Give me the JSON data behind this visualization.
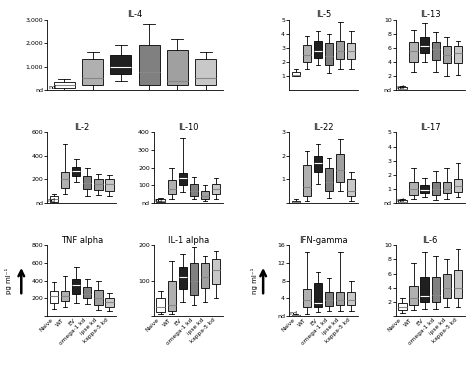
{
  "groups": [
    "Naive",
    "WT",
    "EV",
    "omega-1 kd",
    "ipse kd",
    "kappa-5 kd"
  ],
  "colors": [
    "white",
    "#b0b0b0",
    "#202020",
    "#808080",
    "#a0a0a0",
    "#c8c8c8"
  ],
  "edge_color": "black",
  "panels": [
    {
      "title": "IL-4",
      "ylabel": "",
      "ylim": [
        0,
        3000
      ],
      "yticks": [
        0,
        1000,
        2000,
        3000
      ],
      "yticklabels": [
        "nd",
        "1,000",
        "2,000",
        "3,000"
      ],
      "nd_at": 0,
      "arrow": false,
      "boxes": [
        {
          "med": 200,
          "q1": 100,
          "q3": 350,
          "whislo": 0,
          "whishi": 450
        },
        {
          "med": 500,
          "q1": 200,
          "q3": 1300,
          "whislo": 0,
          "whishi": 1600
        },
        {
          "med": 1000,
          "q1": 700,
          "q3": 1500,
          "whislo": 400,
          "whishi": 1900
        },
        {
          "med": 750,
          "q1": 200,
          "q3": 1900,
          "whislo": 0,
          "whishi": 2800
        },
        {
          "med": 400,
          "q1": 200,
          "q3": 1700,
          "whislo": 0,
          "whishi": 2150
        },
        {
          "med": 500,
          "q1": 200,
          "q3": 1300,
          "whislo": 0,
          "whishi": 1600
        }
      ]
    },
    {
      "title": "IL-5",
      "ylabel": "",
      "ylim": [
        0,
        5
      ],
      "yticks": [
        1,
        2,
        3,
        4,
        5
      ],
      "yticklabels": [
        "1",
        "2",
        "3",
        "4",
        "5"
      ],
      "nd_at": null,
      "arrow": false,
      "boxes": [
        {
          "med": 1.1,
          "q1": 1.0,
          "q3": 1.3,
          "whislo": 1.0,
          "whishi": 1.5
        },
        {
          "med": 2.5,
          "q1": 2.0,
          "q3": 3.2,
          "whislo": 1.5,
          "whishi": 3.8
        },
        {
          "med": 2.8,
          "q1": 2.3,
          "q3": 3.5,
          "whislo": 1.8,
          "whishi": 4.2
        },
        {
          "med": 2.4,
          "q1": 1.8,
          "q3": 3.3,
          "whislo": 1.2,
          "whishi": 4.0
        },
        {
          "med": 2.8,
          "q1": 2.2,
          "q3": 3.5,
          "whislo": 1.5,
          "whishi": 4.8
        },
        {
          "med": 2.8,
          "q1": 2.2,
          "q3": 3.3,
          "whislo": 1.5,
          "whishi": 4.2
        }
      ]
    },
    {
      "title": "IL-13",
      "ylabel": "",
      "ylim": [
        0,
        10
      ],
      "yticks": [
        0,
        2,
        4,
        6,
        8,
        10
      ],
      "yticklabels": [
        "nd",
        "2",
        "4",
        "6",
        "8",
        "10"
      ],
      "nd_at": 0,
      "arrow": false,
      "boxes": [
        {
          "med": 0.2,
          "q1": 0.1,
          "q3": 0.4,
          "whislo": 0.0,
          "whishi": 0.6
        },
        {
          "med": 5.5,
          "q1": 4.0,
          "q3": 6.8,
          "whislo": 2.5,
          "whishi": 8.5
        },
        {
          "med": 6.2,
          "q1": 5.2,
          "q3": 7.5,
          "whislo": 4.0,
          "whishi": 9.5
        },
        {
          "med": 5.8,
          "q1": 4.2,
          "q3": 6.8,
          "whislo": 2.5,
          "whishi": 8.2
        },
        {
          "med": 5.0,
          "q1": 3.8,
          "q3": 6.2,
          "whislo": 2.0,
          "whishi": 7.5
        },
        {
          "med": 5.2,
          "q1": 3.8,
          "q3": 6.2,
          "whislo": 2.2,
          "whishi": 7.0
        }
      ]
    },
    {
      "title": "IL-2",
      "ylabel": "",
      "ylim": [
        0,
        600
      ],
      "yticks": [
        0,
        200,
        400,
        600
      ],
      "yticklabels": [
        "nd",
        "200",
        "400",
        "600"
      ],
      "nd_at": 0,
      "arrow": false,
      "boxes": [
        {
          "med": 30,
          "q1": 10,
          "q3": 60,
          "whislo": 0,
          "whishi": 80
        },
        {
          "med": 200,
          "q1": 130,
          "q3": 260,
          "whislo": 80,
          "whishi": 500
        },
        {
          "med": 270,
          "q1": 230,
          "q3": 310,
          "whislo": 180,
          "whishi": 370
        },
        {
          "med": 170,
          "q1": 120,
          "q3": 230,
          "whislo": 60,
          "whishi": 300
        },
        {
          "med": 160,
          "q1": 110,
          "q3": 200,
          "whislo": 70,
          "whishi": 250
        },
        {
          "med": 160,
          "q1": 100,
          "q3": 200,
          "whislo": 60,
          "whishi": 240
        }
      ]
    },
    {
      "title": "IL-10",
      "ylabel": "",
      "ylim": [
        0,
        400
      ],
      "yticks": [
        0,
        100,
        200,
        300,
        400
      ],
      "yticklabels": [
        "nd",
        "100",
        "200",
        "300",
        "400"
      ],
      "nd_at": 0,
      "arrow": false,
      "boxes": [
        {
          "med": 10,
          "q1": 5,
          "q3": 20,
          "whislo": 0,
          "whishi": 30
        },
        {
          "med": 80,
          "q1": 50,
          "q3": 130,
          "whislo": 20,
          "whishi": 200
        },
        {
          "med": 140,
          "q1": 100,
          "q3": 170,
          "whislo": 60,
          "whishi": 370
        },
        {
          "med": 70,
          "q1": 40,
          "q3": 110,
          "whislo": 20,
          "whishi": 150
        },
        {
          "med": 40,
          "q1": 25,
          "q3": 70,
          "whislo": 10,
          "whishi": 100
        },
        {
          "med": 80,
          "q1": 50,
          "q3": 110,
          "whislo": 20,
          "whishi": 140
        }
      ]
    },
    {
      "title": "IL-22",
      "ylabel": "",
      "ylim": [
        0,
        3
      ],
      "yticks": [
        0,
        1,
        2,
        3
      ],
      "yticklabels": [
        "",
        "1",
        "2",
        "3"
      ],
      "nd_at": null,
      "arrow": false,
      "boxes": [
        {
          "med": 0.05,
          "q1": 0.02,
          "q3": 0.1,
          "whislo": 0.0,
          "whishi": 0.15
        },
        {
          "med": 0.7,
          "q1": 0.3,
          "q3": 1.6,
          "whislo": 0.1,
          "whishi": 2.2
        },
        {
          "med": 1.7,
          "q1": 1.3,
          "q3": 2.0,
          "whislo": 0.8,
          "whishi": 2.5
        },
        {
          "med": 0.9,
          "q1": 0.5,
          "q3": 1.5,
          "whislo": 0.2,
          "whishi": 1.9
        },
        {
          "med": 1.4,
          "q1": 0.9,
          "q3": 2.1,
          "whislo": 0.5,
          "whishi": 2.7
        },
        {
          "med": 0.5,
          "q1": 0.3,
          "q3": 1.0,
          "whislo": 0.1,
          "whishi": 1.3
        }
      ]
    },
    {
      "title": "IL-17",
      "ylabel": "",
      "ylim": [
        0,
        5
      ],
      "yticks": [
        0,
        1,
        2,
        3,
        4,
        5
      ],
      "yticklabels": [
        "nd",
        "1",
        "2",
        "3",
        "4",
        "5"
      ],
      "nd_at": 0,
      "arrow": false,
      "boxes": [
        {
          "med": 0.1,
          "q1": 0.05,
          "q3": 0.2,
          "whislo": 0.0,
          "whishi": 0.3
        },
        {
          "med": 1.0,
          "q1": 0.6,
          "q3": 1.5,
          "whislo": 0.3,
          "whishi": 2.5
        },
        {
          "med": 0.9,
          "q1": 0.7,
          "q3": 1.3,
          "whislo": 0.4,
          "whishi": 1.8
        },
        {
          "med": 1.0,
          "q1": 0.6,
          "q3": 1.5,
          "whislo": 0.2,
          "whishi": 2.3
        },
        {
          "med": 1.0,
          "q1": 0.7,
          "q3": 1.5,
          "whislo": 0.3,
          "whishi": 2.5
        },
        {
          "med": 1.2,
          "q1": 0.8,
          "q3": 1.7,
          "whislo": 0.4,
          "whishi": 2.8
        }
      ]
    },
    {
      "title": "TNF alpha",
      "ylabel": "pg ml⁻¹",
      "ylim": [
        0,
        800
      ],
      "yticks": [
        0,
        200,
        400,
        600,
        800
      ],
      "yticklabels": [
        "",
        "200",
        "400",
        "600",
        "800"
      ],
      "nd_at": null,
      "arrow": true,
      "boxes": [
        {
          "med": 220,
          "q1": 150,
          "q3": 280,
          "whislo": 80,
          "whishi": 380
        },
        {
          "med": 220,
          "q1": 170,
          "q3": 280,
          "whislo": 100,
          "whishi": 450
        },
        {
          "med": 350,
          "q1": 250,
          "q3": 420,
          "whislo": 150,
          "whishi": 560
        },
        {
          "med": 250,
          "q1": 200,
          "q3": 330,
          "whislo": 130,
          "whishi": 420
        },
        {
          "med": 200,
          "q1": 120,
          "q3": 290,
          "whislo": 70,
          "whishi": 390
        },
        {
          "med": 160,
          "q1": 100,
          "q3": 200,
          "whislo": 60,
          "whishi": 260
        }
      ]
    },
    {
      "title": "IL-1 alpha",
      "ylabel": "",
      "ylim": [
        0,
        200
      ],
      "yticks": [
        0,
        100,
        200
      ],
      "yticklabels": [
        "",
        "100",
        "200"
      ],
      "nd_at": null,
      "arrow": false,
      "boxes": [
        {
          "med": 25,
          "q1": 10,
          "q3": 50,
          "whislo": 5,
          "whishi": 70
        },
        {
          "med": 30,
          "q1": 15,
          "q3": 100,
          "whislo": 5,
          "whishi": 155
        },
        {
          "med": 110,
          "q1": 75,
          "q3": 140,
          "whislo": 40,
          "whishi": 175
        },
        {
          "med": 100,
          "q1": 60,
          "q3": 150,
          "whislo": 30,
          "whishi": 195
        },
        {
          "med": 110,
          "q1": 80,
          "q3": 150,
          "whislo": 40,
          "whishi": 170
        },
        {
          "med": 130,
          "q1": 90,
          "q3": 160,
          "whislo": 50,
          "whishi": 185
        }
      ]
    },
    {
      "title": "IFN-gamma",
      "ylabel": "ng ml⁻¹",
      "ylim": [
        0,
        16
      ],
      "yticks": [
        0,
        4,
        8,
        12,
        16
      ],
      "yticklabels": [
        "nd",
        "4",
        "8",
        "12",
        "16"
      ],
      "nd_at": 0,
      "arrow": true,
      "boxes": [
        {
          "med": 0.1,
          "q1": 0.05,
          "q3": 0.3,
          "whislo": 0.0,
          "whishi": 0.5
        },
        {
          "med": 3.5,
          "q1": 2.0,
          "q3": 6.0,
          "whislo": 0.5,
          "whishi": 14.5
        },
        {
          "med": 3.0,
          "q1": 2.0,
          "q3": 7.5,
          "whislo": 0.8,
          "whishi": 10.0
        },
        {
          "med": 3.5,
          "q1": 2.2,
          "q3": 5.5,
          "whislo": 1.0,
          "whishi": 8.5
        },
        {
          "med": 3.5,
          "q1": 2.5,
          "q3": 5.5,
          "whislo": 1.0,
          "whishi": 14.5
        },
        {
          "med": 3.5,
          "q1": 2.5,
          "q3": 5.5,
          "whislo": 1.0,
          "whishi": 8.0
        }
      ]
    },
    {
      "title": "IL-6",
      "ylabel": "",
      "ylim": [
        0,
        10
      ],
      "yticks": [
        0,
        2,
        4,
        6,
        8,
        10
      ],
      "yticklabels": [
        "",
        "2",
        "4",
        "6",
        "8",
        "10"
      ],
      "nd_at": null,
      "arrow": false,
      "boxes": [
        {
          "med": 1.2,
          "q1": 0.8,
          "q3": 1.8,
          "whislo": 0.4,
          "whishi": 2.5
        },
        {
          "med": 2.5,
          "q1": 1.5,
          "q3": 4.2,
          "whislo": 0.8,
          "whishi": 7.5
        },
        {
          "med": 2.8,
          "q1": 2.0,
          "q3": 5.5,
          "whislo": 1.0,
          "whishi": 9.0
        },
        {
          "med": 3.0,
          "q1": 2.0,
          "q3": 5.5,
          "whislo": 1.0,
          "whishi": 8.5
        },
        {
          "med": 4.0,
          "q1": 2.5,
          "q3": 6.0,
          "whislo": 1.2,
          "whishi": 8.0
        },
        {
          "med": 4.0,
          "q1": 2.5,
          "q3": 6.5,
          "whislo": 1.2,
          "whishi": 9.5
        }
      ]
    }
  ]
}
